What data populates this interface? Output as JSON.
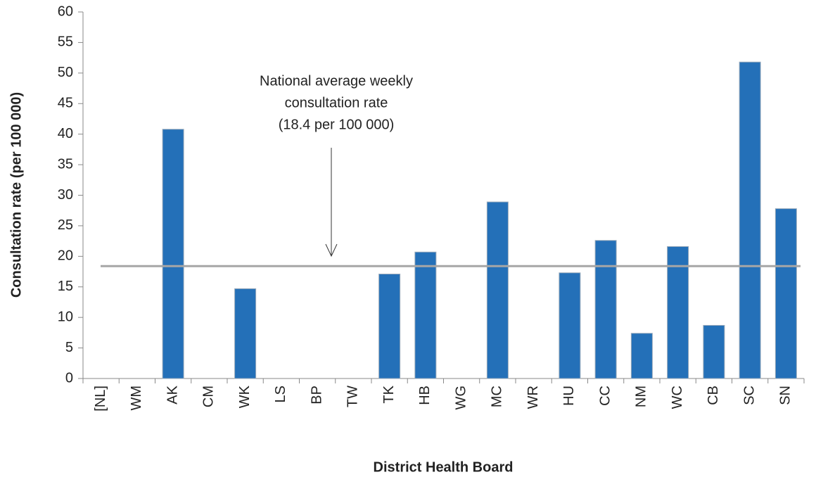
{
  "chart_data": {
    "type": "bar",
    "categories": [
      "[NL]",
      "WM",
      "AK",
      "CM",
      "WK",
      "LS",
      "BP",
      "TW",
      "TK",
      "HB",
      "WG",
      "MC",
      "WR",
      "HU",
      "CC",
      "NM",
      "WC",
      "CB",
      "SC",
      "SN"
    ],
    "values": [
      0,
      0,
      40.8,
      0,
      14.7,
      0,
      0,
      0,
      17.1,
      20.7,
      0,
      28.9,
      0,
      17.3,
      22.6,
      7.4,
      21.6,
      8.7,
      51.8,
      27.8
    ],
    "color": "#2470b8",
    "ylim": [
      0,
      60
    ],
    "yticks": [
      0,
      5,
      10,
      15,
      20,
      25,
      30,
      35,
      40,
      45,
      50,
      55,
      60
    ],
    "y_label": "Consultation rate (per 100 000)",
    "x_label": "District Health Board",
    "reference_line": {
      "value": 18.4,
      "color": "#a6a6a6"
    },
    "annotation": [
      "National average weekly",
      "consultation rate",
      "(18.4 per 100 000)"
    ]
  }
}
